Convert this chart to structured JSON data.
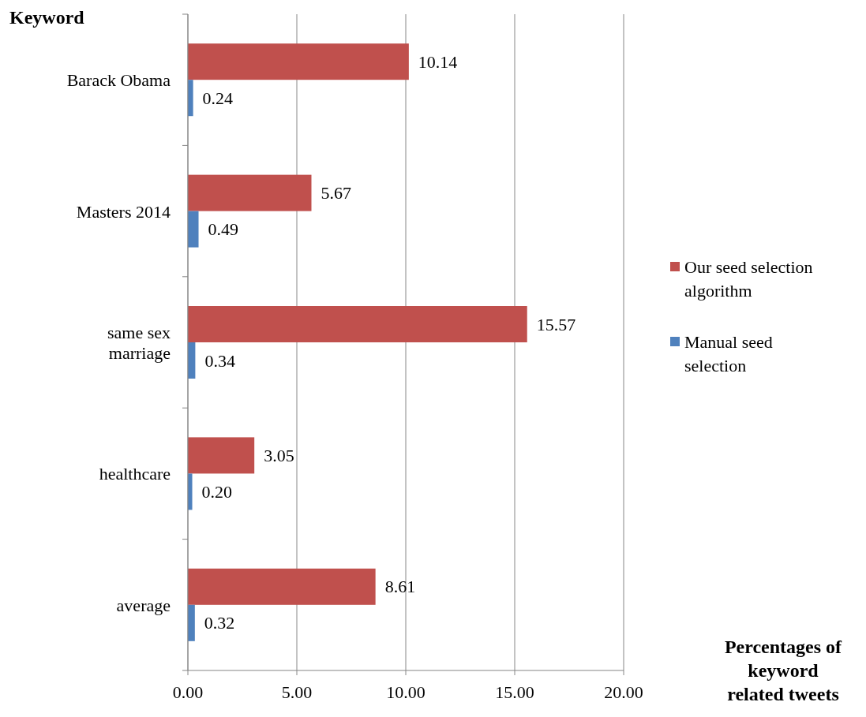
{
  "chart_data": {
    "type": "bar",
    "orientation": "horizontal",
    "xlabel": "Percentages of keyword related tweets",
    "ylabel": "Keyword",
    "categories": [
      "Barack Obama",
      "Masters 2014",
      "same sex marriage",
      "healthcare",
      "average"
    ],
    "series": [
      {
        "name": "Our seed selection algorithm",
        "color": "#c0504d",
        "values": [
          10.14,
          5.67,
          15.57,
          3.05,
          8.61
        ],
        "value_labels": [
          "10.14",
          "5.67",
          "15.57",
          "3.05",
          "8.61"
        ]
      },
      {
        "name": "Manual seed selection",
        "color": "#4f81bd",
        "values": [
          0.24,
          0.49,
          0.34,
          0.2,
          0.32
        ],
        "value_labels": [
          "0.24",
          "0.49",
          "0.34",
          "0.20",
          "0.32"
        ]
      }
    ],
    "xlim": [
      0,
      20
    ],
    "xticks": [
      {
        "value": 0,
        "label": "0.00"
      },
      {
        "value": 5,
        "label": "5.00"
      },
      {
        "value": 10,
        "label": "10.00"
      },
      {
        "value": 15,
        "label": "15.00"
      },
      {
        "value": 20,
        "label": "20.00"
      }
    ],
    "grid": "x",
    "legend": "right"
  }
}
